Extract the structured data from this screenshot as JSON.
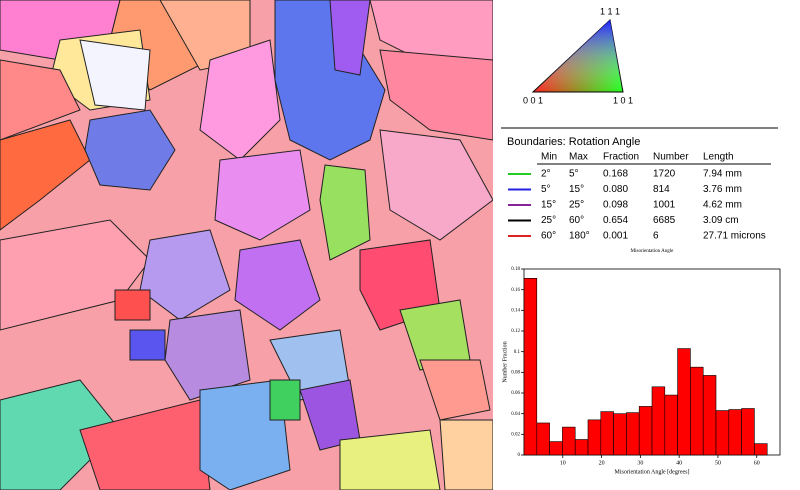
{
  "ipf_legend": {
    "top": "1 1 1",
    "left": "0 0 1",
    "right": "1 0 1"
  },
  "table": {
    "title": "Boundaries: Rotation Angle",
    "columns": [
      "Min",
      "Max",
      "Fraction",
      "Number",
      "Length"
    ],
    "rows": [
      {
        "color": "#22cc22",
        "cells": [
          "2°",
          "5°",
          "0.168",
          "1720",
          "7.94 mm"
        ]
      },
      {
        "color": "#2222dd",
        "cells": [
          "5°",
          "15°",
          "0.080",
          "814",
          "3.76 mm"
        ]
      },
      {
        "color": "#882299",
        "cells": [
          "15°",
          "25°",
          "0.098",
          "1001",
          "4.62 mm"
        ]
      },
      {
        "color": "#000000",
        "cells": [
          "25°",
          "60°",
          "0.654",
          "6685",
          "3.09 cm"
        ]
      },
      {
        "color": "#dd2222",
        "cells": [
          "60°",
          "180°",
          "0.001",
          "6",
          "27.71 microns"
        ]
      }
    ]
  },
  "chart_data": {
    "type": "histogram",
    "title": "Misorientation Angle",
    "x_label": "Misorientation Angle [degrees]",
    "y_label": "Number Fraction",
    "bins": [
      0,
      3.3,
      6.6,
      9.9,
      13.2,
      16.5,
      19.8,
      23.1,
      26.4,
      29.7,
      33,
      36.3,
      39.6,
      42.9,
      46.2,
      49.5,
      52.8,
      56.1,
      59.4,
      62.7
    ],
    "values": [
      0.171,
      0.031,
      0.013,
      0.027,
      0.015,
      0.034,
      0.042,
      0.04,
      0.041,
      0.047,
      0.066,
      0.058,
      0.103,
      0.085,
      0.077,
      0.043,
      0.044,
      0.045,
      0.011
    ],
    "color": "#ff0000",
    "xlim": [
      0,
      66
    ],
    "xticks": [
      10,
      20,
      30,
      40,
      50,
      60
    ],
    "ylim": [
      0,
      0.18
    ],
    "yticks": [
      0,
      0.02,
      0.04,
      0.06,
      0.08,
      0.1,
      0.12,
      0.14,
      0.16,
      0.18
    ]
  }
}
